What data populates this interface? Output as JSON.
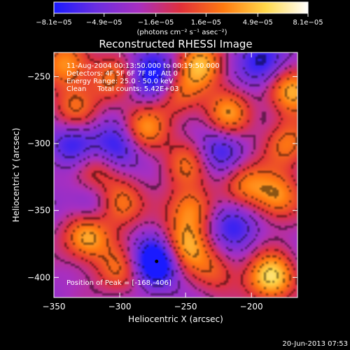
{
  "chart_data": {
    "type": "heatmap",
    "title": "Reconstructed RHESSI Image",
    "xlabel": "Heliocentric X (arcsec)",
    "ylabel": "Heliocentric Y (arcsec)",
    "xlim": [
      -350,
      -165
    ],
    "ylim": [
      -415,
      -232
    ],
    "x_ticks": [
      -350,
      -300,
      -250,
      -200
    ],
    "y_ticks": [
      -250,
      -300,
      -350,
      -400
    ],
    "x_tick_labels": [
      "−350",
      "−300",
      "−250",
      "−200"
    ],
    "y_tick_labels": [
      "−250",
      "−300",
      "−350",
      "−400"
    ],
    "colorbar": {
      "range": [
        -8.1e-05,
        8.1e-05
      ],
      "tick_values": [
        -8.1e-05,
        -4.9e-05,
        -1.6e-05,
        1.6e-05,
        4.9e-05,
        8.1e-05
      ],
      "tick_labels": [
        "−8.1e−05",
        "−4.9e−05",
        "−1.6e−05",
        "1.6e−05",
        "4.9e−05",
        "8.1e−05"
      ],
      "units": "(photons cm⁻² s⁻¹ asec⁻²)",
      "colors": [
        "#1a1aff",
        "#6a2ee0",
        "#a82fc0",
        "#e0303a",
        "#ff7a10",
        "#ffd84a",
        "#ffffff"
      ]
    },
    "annotations": [
      "11-Aug-2004 00:13:50.000 to 00:19:50.000",
      "Detectors: 4F 5F 6F 7F 8F, Att 0",
      "Energy Range: 25.0 - 50.0 keV",
      "Clean     Total counts: 5.42E+03"
    ],
    "peak_label": "Position of Peak = [-168,-406]",
    "peak_position": [
      -168,
      -406
    ],
    "blobs": [
      {
        "x": -185,
        "y": -400,
        "v": 1.0
      },
      {
        "x": -170,
        "y": -260,
        "v": 0.85
      },
      {
        "x": -218,
        "y": -278,
        "v": 0.7
      },
      {
        "x": -238,
        "y": -240,
        "v": 0.75
      },
      {
        "x": -255,
        "y": -262,
        "v": 0.55
      },
      {
        "x": -283,
        "y": -290,
        "v": 0.8
      },
      {
        "x": -340,
        "y": -240,
        "v": 0.7
      },
      {
        "x": -305,
        "y": -252,
        "v": 0.55
      },
      {
        "x": -335,
        "y": -275,
        "v": 0.55
      },
      {
        "x": -320,
        "y": -320,
        "v": 0.55
      },
      {
        "x": -300,
        "y": -345,
        "v": 0.75
      },
      {
        "x": -325,
        "y": -370,
        "v": 0.85
      },
      {
        "x": -250,
        "y": -315,
        "v": 0.55
      },
      {
        "x": -245,
        "y": -350,
        "v": 0.7
      },
      {
        "x": -252,
        "y": -378,
        "v": 0.8
      },
      {
        "x": -205,
        "y": -330,
        "v": 0.6
      },
      {
        "x": -172,
        "y": -300,
        "v": 0.6
      },
      {
        "x": -180,
        "y": -340,
        "v": 0.7
      },
      {
        "x": -228,
        "y": -395,
        "v": 0.45
      },
      {
        "x": -300,
        "y": -395,
        "v": 0.55
      },
      {
        "x": -275,
        "y": -250,
        "v": -0.7
      },
      {
        "x": -300,
        "y": -302,
        "v": -0.7
      },
      {
        "x": -272,
        "y": -388,
        "v": -1.0
      },
      {
        "x": -215,
        "y": -360,
        "v": -0.55
      },
      {
        "x": -190,
        "y": -240,
        "v": -0.6
      },
      {
        "x": -335,
        "y": -300,
        "v": -0.55
      },
      {
        "x": -225,
        "y": -305,
        "v": -0.5
      },
      {
        "x": -320,
        "y": -345,
        "v": -0.45
      }
    ]
  },
  "footer_date": "20-Jun-2013 07:53"
}
